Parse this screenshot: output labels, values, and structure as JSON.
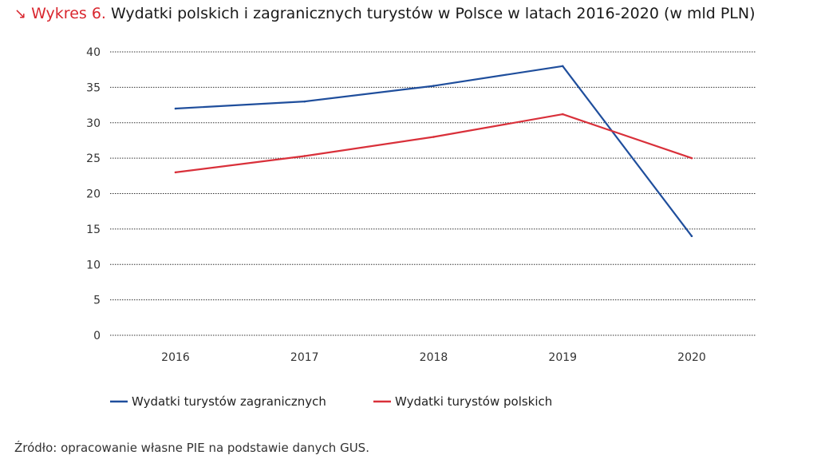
{
  "header": {
    "arrow": "↘",
    "prefix": "Wykres 6.",
    "title": "Wydatki polskich i zagranicznych turystów w Polsce w latach 2016-2020 (w mld PLN)"
  },
  "source": "Źródło: opracowanie własne PIE na podstawie danych GUS.",
  "colors": {
    "accent": "#d9262e",
    "foreign": "#1f4e9c",
    "polish": "#d9303a",
    "grid": "#333333"
  },
  "chart_data": {
    "type": "line",
    "title": "Wydatki polskich i zagranicznych turystów w Polsce w latach 2016-2020 (w mld PLN)",
    "xlabel": "",
    "ylabel": "",
    "categories": [
      "2016",
      "2017",
      "2018",
      "2019",
      "2020"
    ],
    "y_ticks": [
      "0",
      "5",
      "10",
      "15",
      "20",
      "25",
      "30",
      "35",
      "40"
    ],
    "ylim": [
      0,
      40
    ],
    "grid": true,
    "legend_position": "bottom-left",
    "series": [
      {
        "name": "Wydatki turystów zagranicznych",
        "color": "#1f4e9c",
        "values": [
          32.0,
          33.0,
          35.2,
          38.0,
          14.0
        ]
      },
      {
        "name": "Wydatki turystów polskich",
        "color": "#d9303a",
        "values": [
          23.0,
          25.3,
          28.0,
          31.2,
          25.0
        ]
      }
    ]
  }
}
